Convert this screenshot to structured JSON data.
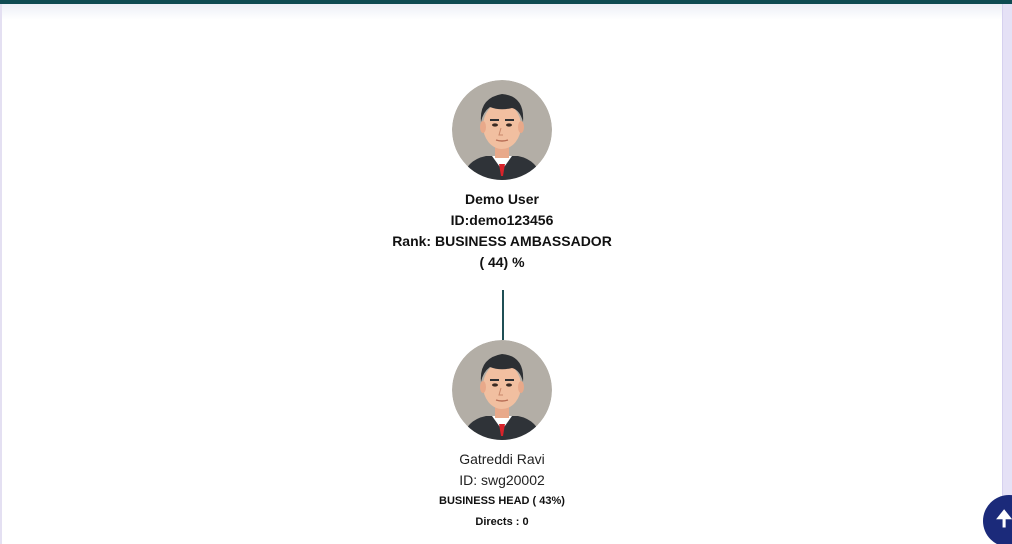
{
  "root": {
    "name": "Demo User",
    "id": "ID:demo123456",
    "rank": "Rank: BUSINESS AMBASSADOR",
    "percent": "( 44) %",
    "avatar": "user-avatar-icon"
  },
  "child": {
    "name": "Gatreddi Ravi",
    "id": "ID: swg20002",
    "rank": "BUSINESS HEAD ( 43%)",
    "directs": "Directs : 0",
    "avatar": "user-avatar-icon"
  },
  "scroll_top": {
    "icon": "arrow-up-icon",
    "glyph": "🠉"
  },
  "colors": {
    "top_bar": "#0e4b52",
    "connector": "#1f4f55",
    "scroll_button": "#1b2a7a"
  }
}
